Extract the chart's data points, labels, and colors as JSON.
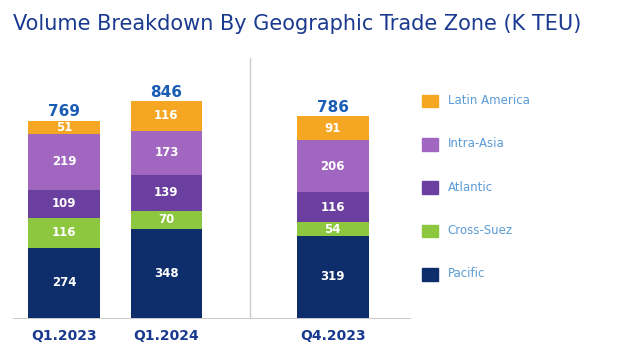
{
  "title": "Volume Breakdown By Geographic Trade Zone (K TEU)",
  "categories": [
    "Q1.2023",
    "Q1.2024",
    "Q4.2023"
  ],
  "totals": [
    769,
    846,
    786
  ],
  "segments": {
    "Pacific": [
      274,
      348,
      319
    ],
    "Cross-Suez": [
      116,
      70,
      54
    ],
    "Atlantic": [
      109,
      139,
      116
    ],
    "Intra-Asia": [
      219,
      173,
      206
    ],
    "Latin America": [
      51,
      116,
      91
    ]
  },
  "colors": {
    "Pacific": "#0d2d6b",
    "Cross-Suez": "#8dc63f",
    "Atlantic": "#6b3fa0",
    "Intra-Asia": "#a066c0",
    "Latin America": "#f5a623"
  },
  "bar_width": 0.28,
  "x_positions": [
    0.15,
    0.55,
    1.2
  ],
  "title_color": "#1a3a8f",
  "title_fontsize": 15,
  "label_fontsize": 8.5,
  "total_fontsize": 11,
  "total_color": "#1a5db5",
  "tick_color": "#1a3a8f",
  "tick_fontsize": 10,
  "background_color": "#ffffff",
  "vline_x": 0.875,
  "legend_labels": [
    "Latin America",
    "Intra-Asia",
    "Atlantic",
    "Cross-Suez",
    "Pacific"
  ],
  "legend_text_color": "#5b9bd5"
}
